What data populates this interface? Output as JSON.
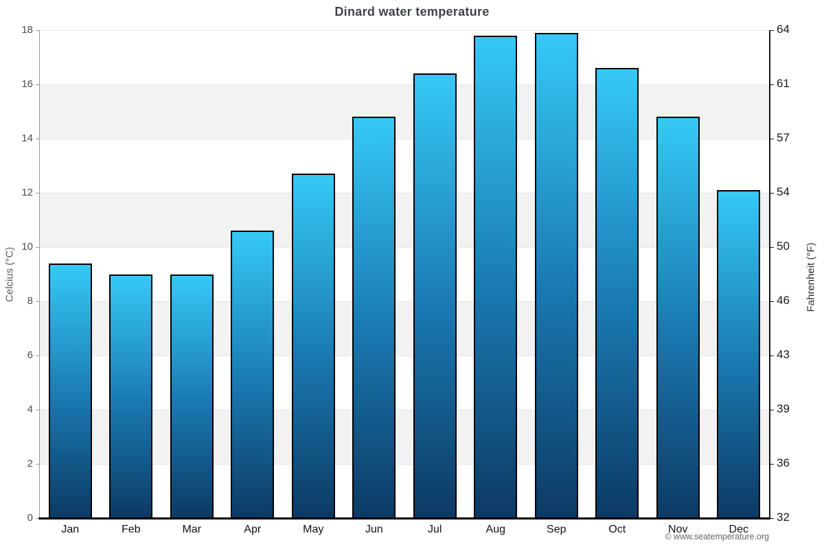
{
  "title": "Dinard water temperature",
  "copyright": "© www.seatemperature.org",
  "y_axis_left": {
    "label": "Celcius (°C)",
    "ticks": [
      0,
      2,
      4,
      6,
      8,
      10,
      12,
      14,
      16,
      18
    ],
    "max": 18
  },
  "y_axis_right": {
    "label": "Fahrenheit (°F)",
    "ticks": [
      "32",
      "36",
      "39",
      "43",
      "46",
      "50",
      "54",
      "57",
      "61",
      "64"
    ]
  },
  "chart_data": {
    "type": "bar",
    "title": "Dinard water temperature",
    "categories": [
      "Jan",
      "Feb",
      "Mar",
      "Apr",
      "May",
      "Jun",
      "Jul",
      "Aug",
      "Sep",
      "Oct",
      "Nov",
      "Dec"
    ],
    "values": [
      9.4,
      9.0,
      9.0,
      10.6,
      12.7,
      14.8,
      16.4,
      17.8,
      17.9,
      16.6,
      14.8,
      12.1
    ],
    "xlabel": "",
    "ylabel": "Celcius (°C)",
    "y2label": "Fahrenheit (°F)",
    "ylim": [
      0,
      18
    ],
    "y2lim": [
      32,
      64.4
    ],
    "grid": true,
    "legend": false,
    "background_bands": "alternating white / light gray every 2°C"
  },
  "colors": {
    "bar_top": "#36c9f6",
    "bar_mid": "#1a7ab3",
    "bar_bottom": "#0c3a64",
    "bar_border": "#000000",
    "band_fill": "#f2f2f2",
    "band_alt": "#ffffff",
    "grid_line": "#e4e4e4",
    "left_axis": "#999999",
    "right_axis": "#151515",
    "bottom_axis": "#000000",
    "title_color": "#3f4449",
    "copyright_color": "#666666"
  }
}
